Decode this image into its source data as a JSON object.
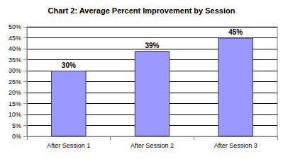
{
  "chart_data": {
    "type": "bar",
    "title": "Chart 2: Average Percent Improvement by Session",
    "categories": [
      "After Session 1",
      "After Session 2",
      "After Session 3"
    ],
    "values": [
      30,
      39,
      45
    ],
    "value_labels": [
      "30%",
      "39%",
      "45%"
    ],
    "color": "#9999ff",
    "ylim": [
      0,
      50
    ],
    "yticks": [
      {
        "value": 0,
        "label": "0%"
      },
      {
        "value": 5,
        "label": "5%"
      },
      {
        "value": 10,
        "label": "10%"
      },
      {
        "value": 15,
        "label": "15%"
      },
      {
        "value": 20,
        "label": "20%"
      },
      {
        "value": 25,
        "label": "25%"
      },
      {
        "value": 30,
        "label": "30%"
      },
      {
        "value": 35,
        "label": "35%"
      },
      {
        "value": 40,
        "label": "40%"
      },
      {
        "value": 45,
        "label": "45%"
      },
      {
        "value": 50,
        "label": "50%"
      }
    ],
    "grid": true,
    "data_labels": true
  }
}
